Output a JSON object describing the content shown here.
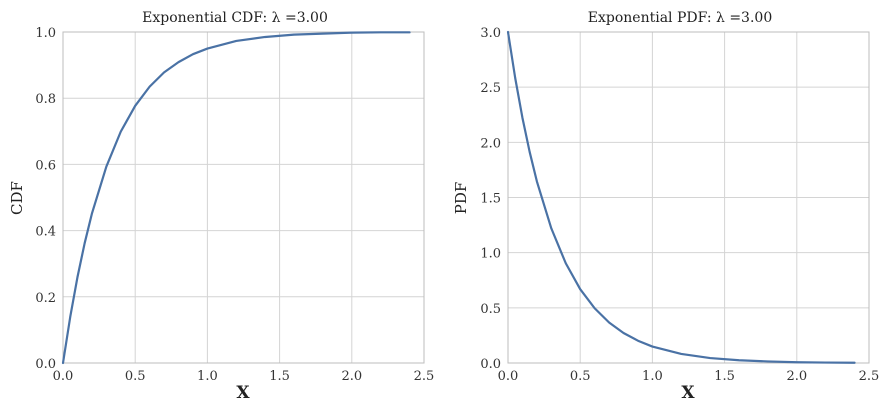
{
  "colors": {
    "line": "#4a72a5",
    "grid": "#d4d4d4",
    "background": "#ffffff"
  },
  "chart_data": [
    {
      "type": "line",
      "title": "Exponential CDF: λ =3.00",
      "xlabel": "X",
      "ylabel": "CDF",
      "xlim": [
        0.0,
        2.5
      ],
      "ylim": [
        0.0,
        1.0
      ],
      "xticks": [
        "0.0",
        "0.5",
        "1.0",
        "1.5",
        "2.0",
        "2.5"
      ],
      "yticks": [
        "0.0",
        "0.2",
        "0.4",
        "0.6",
        "0.8",
        "1.0"
      ],
      "grid": true,
      "series": [
        {
          "x": [
            0.0,
            0.05,
            0.1,
            0.15,
            0.2,
            0.3,
            0.4,
            0.5,
            0.6,
            0.7,
            0.8,
            0.9,
            1.0,
            1.2,
            1.4,
            1.6,
            1.8,
            2.0,
            2.2,
            2.4
          ],
          "values": [
            0.0,
            0.139,
            0.259,
            0.362,
            0.451,
            0.593,
            0.699,
            0.777,
            0.835,
            0.878,
            0.909,
            0.933,
            0.95,
            0.973,
            0.985,
            0.992,
            0.995,
            0.998,
            0.999,
            0.999
          ]
        }
      ]
    },
    {
      "type": "line",
      "title": "Exponential PDF: λ =3.00",
      "xlabel": "X",
      "ylabel": "PDF",
      "xlim": [
        0.0,
        2.5
      ],
      "ylim": [
        0.0,
        3.0
      ],
      "xticks": [
        "0.0",
        "0.5",
        "1.0",
        "1.5",
        "2.0",
        "2.5"
      ],
      "yticks": [
        "0.0",
        "0.5",
        "1.0",
        "1.5",
        "2.0",
        "2.5",
        "3.0"
      ],
      "grid": true,
      "series": [
        {
          "x": [
            0.0,
            0.05,
            0.1,
            0.15,
            0.2,
            0.3,
            0.4,
            0.5,
            0.6,
            0.7,
            0.8,
            0.9,
            1.0,
            1.2,
            1.4,
            1.6,
            1.8,
            2.0,
            2.2,
            2.4
          ],
          "values": [
            3.0,
            2.582,
            2.222,
            1.913,
            1.646,
            1.22,
            0.904,
            0.669,
            0.496,
            0.367,
            0.272,
            0.202,
            0.149,
            0.082,
            0.045,
            0.025,
            0.014,
            0.007,
            0.004,
            0.002
          ]
        }
      ]
    }
  ]
}
